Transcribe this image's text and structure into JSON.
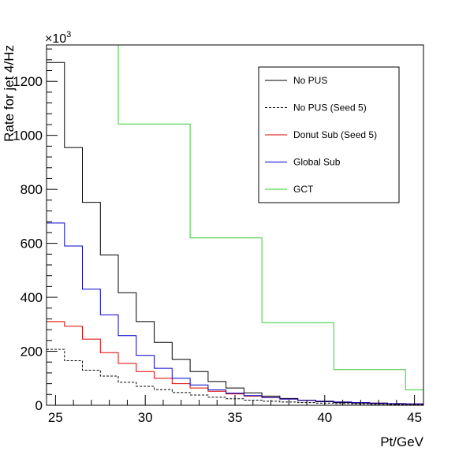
{
  "chart_data": {
    "type": "line",
    "title": "",
    "xlabel": "Pt/GeV",
    "ylabel": "Rate for jet 4/Hz",
    "y_multiplier_label": "×10",
    "y_multiplier_exponent": "3",
    "xlim": [
      24.5,
      45.5
    ],
    "ylim": [
      0,
      1335
    ],
    "x_ticks": [
      25,
      30,
      35,
      40,
      45
    ],
    "y_ticks": [
      0,
      200,
      400,
      600,
      800,
      1000,
      1200
    ],
    "legend_position": "top-right",
    "grid": false,
    "series": [
      {
        "name": "No PUS",
        "color": "#000000",
        "dashed": false,
        "bin_edges": [
          24.5,
          25.5,
          26.5,
          27.5,
          28.5,
          29.5,
          30.5,
          31.5,
          32.5,
          33.5,
          34.5,
          35.5,
          36.5,
          37.5,
          38.5,
          39.5,
          40.5,
          41.5,
          42.5,
          43.5,
          44.5,
          45.5
        ],
        "values": [
          1270,
          955,
          752,
          557,
          417,
          310,
          233,
          170,
          125,
          88,
          64,
          46,
          34,
          25,
          18,
          13,
          10,
          8,
          6,
          5,
          4
        ]
      },
      {
        "name": "No PUS (Seed 5)",
        "color": "#000000",
        "dashed": true,
        "bin_edges": [
          24.5,
          25.5,
          26.5,
          27.5,
          28.5,
          29.5,
          30.5,
          31.5,
          32.5,
          33.5,
          34.5,
          35.5,
          36.5,
          37.5,
          38.5,
          39.5,
          40.5,
          41.5,
          42.5,
          43.5,
          44.5,
          45.5
        ],
        "values": [
          207,
          165,
          130,
          108,
          85,
          70,
          58,
          47,
          38,
          30,
          24,
          19,
          15,
          12,
          10,
          8,
          6,
          5,
          4,
          3,
          2
        ]
      },
      {
        "name": "Donut Sub (Seed 5)",
        "color": "#dd0000",
        "dashed": false,
        "bin_edges": [
          24.5,
          25.5,
          26.5,
          27.5,
          28.5,
          29.5,
          30.5,
          31.5,
          32.5,
          33.5,
          34.5,
          35.5,
          36.5,
          37.5,
          38.5,
          39.5,
          40.5,
          41.5,
          42.5,
          43.5,
          44.5,
          45.5
        ],
        "values": [
          310,
          293,
          245,
          195,
          155,
          125,
          100,
          80,
          64,
          52,
          42,
          34,
          28,
          23,
          19,
          15,
          12,
          10,
          8,
          6,
          5
        ]
      },
      {
        "name": "Global Sub",
        "color": "#0000cc",
        "dashed": false,
        "bin_edges": [
          24.5,
          25.5,
          26.5,
          27.5,
          28.5,
          29.5,
          30.5,
          31.5,
          32.5,
          33.5,
          34.5,
          35.5,
          36.5,
          37.5,
          38.5,
          39.5,
          40.5,
          41.5,
          42.5,
          43.5,
          44.5,
          45.5
        ],
        "values": [
          675,
          590,
          430,
          335,
          258,
          185,
          137,
          100,
          75,
          57,
          45,
          36,
          29,
          23,
          18,
          15,
          12,
          10,
          8,
          6,
          5
        ]
      },
      {
        "name": "GCT",
        "color": "#33cc33",
        "dashed": false,
        "bin_edges": [
          24.5,
          28.5,
          32.5,
          36.5,
          40.5,
          44.5,
          45.5
        ],
        "values": [
          1500,
          1042,
          620,
          306,
          132,
          57
        ]
      }
    ]
  }
}
